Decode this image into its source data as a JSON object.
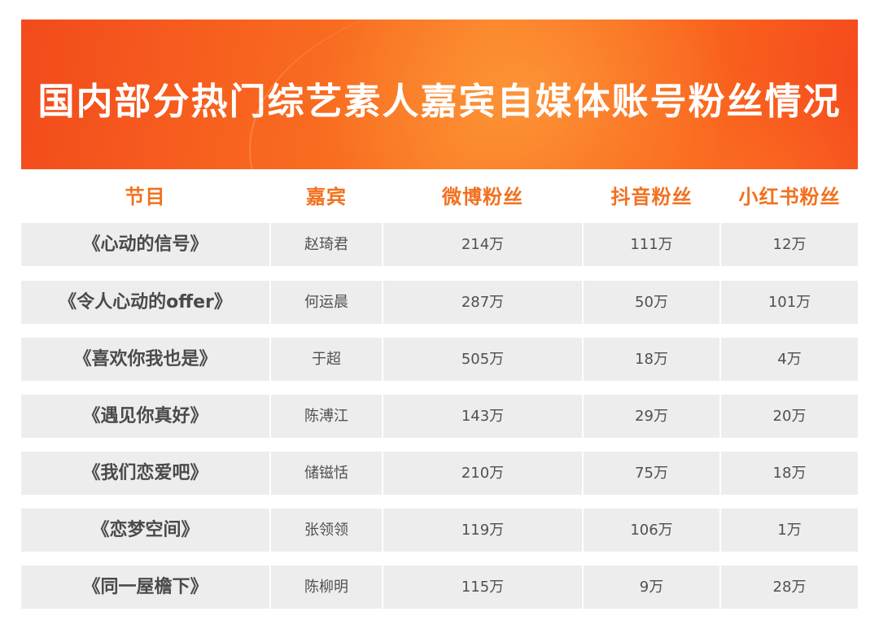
{
  "title": "国内部分热门综艺素人嘉宾自媒体账号粉丝情况",
  "colors": {
    "banner": "#f8661f",
    "header_text": "#f2701e",
    "row_bg": "#ededed"
  },
  "chart_data": {
    "type": "table",
    "title": "国内部分热门综艺素人嘉宾自媒体账号粉丝情况",
    "columns": [
      "节目",
      "嘉宾",
      "微博粉丝",
      "抖音粉丝",
      "小红书粉丝"
    ],
    "rows": [
      [
        "《心动的信号》",
        "赵琦君",
        "214万",
        "111万",
        "12万"
      ],
      [
        "《令人心动的offer》",
        "何运晨",
        "287万",
        "50万",
        "101万"
      ],
      [
        "《喜欢你我也是》",
        "于超",
        "505万",
        "18万",
        "4万"
      ],
      [
        "《遇见你真好》",
        "陈溥江",
        "143万",
        "29万",
        "20万"
      ],
      [
        "《我们恋爱吧》",
        "储镃恬",
        "210万",
        "75万",
        "18万"
      ],
      [
        "《恋梦空间》",
        "张领领",
        "119万",
        "106万",
        "1万"
      ],
      [
        "《同一屋檐下》",
        "陈柳明",
        "115万",
        "9万",
        "28万"
      ]
    ]
  }
}
